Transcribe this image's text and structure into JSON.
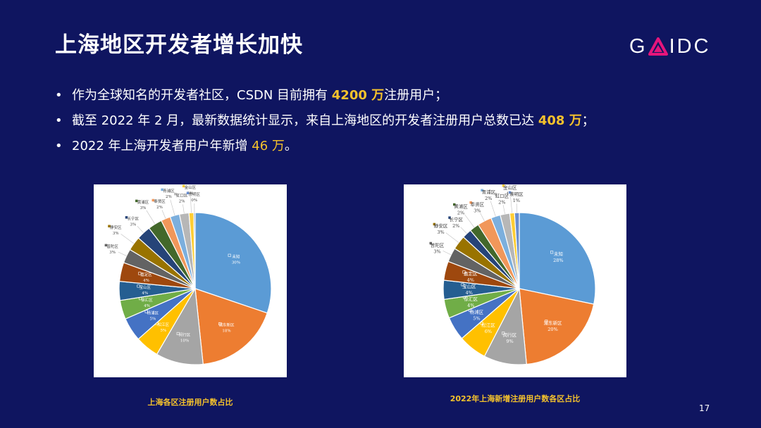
{
  "slide": {
    "title": "上海地区开发者增长加快",
    "logo": {
      "prefix": "G",
      "suffix": "IDC",
      "accent_color": "#e5157b"
    },
    "bullets": [
      {
        "pre": "作为全球知名的开发者社区，CSDN 目前拥有 ",
        "highlight": "4200 万",
        "post": "注册用户；"
      },
      {
        "pre": "截至 2022 年 2 月，最新数据统计显示，来自上海地区的开发者注册用户总数已达 ",
        "highlight": "408 万",
        "post": "；"
      },
      {
        "pre": "2022 年上海开发者用户年新增 ",
        "highlight": "46 万",
        "post": "。"
      }
    ],
    "page_number": "17",
    "colors": {
      "background": "#0f1560",
      "highlight": "#f5c22c",
      "text": "#ffffff"
    }
  },
  "chart_data": [
    {
      "type": "pie",
      "title": "上海各区注册用户数占比",
      "slices": [
        {
          "label": "未知",
          "value": 30,
          "pct": "30%",
          "color": "#5b9bd5"
        },
        {
          "label": "浦东新区",
          "value": 18,
          "pct": "18%",
          "color": "#ed7d31"
        },
        {
          "label": "闵行区",
          "value": 10,
          "pct": "10%",
          "color": "#a5a5a5"
        },
        {
          "label": "松江区",
          "value": 5,
          "pct": "5%",
          "color": "#ffc000"
        },
        {
          "label": "杨浦区",
          "value": 5,
          "pct": "5%",
          "color": "#4472c4"
        },
        {
          "label": "徐汇区",
          "value": 4,
          "pct": "4%",
          "color": "#70ad47"
        },
        {
          "label": "宝山区",
          "value": 4,
          "pct": "4%",
          "color": "#255e91"
        },
        {
          "label": "嘉定区",
          "value": 4,
          "pct": "4%",
          "color": "#9e480e"
        },
        {
          "label": "普陀区",
          "value": 3,
          "pct": "3%",
          "color": "#636363"
        },
        {
          "label": "静安区",
          "value": 3,
          "pct": "3%",
          "color": "#997300"
        },
        {
          "label": "长宁区",
          "value": 3,
          "pct": "3%",
          "color": "#264478"
        },
        {
          "label": "黄浦区",
          "value": 3,
          "pct": "3%",
          "color": "#43682b"
        },
        {
          "label": "奉贤区",
          "value": 2,
          "pct": "2%",
          "color": "#f1975a"
        },
        {
          "label": "青浦区",
          "value": 2,
          "pct": "2%",
          "color": "#7cafdd"
        },
        {
          "label": "虹口区",
          "value": 2,
          "pct": "2%",
          "color": "#b7b7b7"
        },
        {
          "label": "金山区",
          "value": 1,
          "pct": "1%",
          "color": "#ffcd33"
        },
        {
          "label": "崇明区",
          "value": 0.3,
          "pct": "0%",
          "color": "#698ed0"
        }
      ]
    },
    {
      "type": "pie",
      "title": "2022年上海新增注册用户数各区占比",
      "slices": [
        {
          "label": "未知",
          "value": 28,
          "pct": "28%",
          "color": "#5b9bd5"
        },
        {
          "label": "浦东新区",
          "value": 20,
          "pct": "20%",
          "color": "#ed7d31"
        },
        {
          "label": "闵行区",
          "value": 9,
          "pct": "9%",
          "color": "#a5a5a5"
        },
        {
          "label": "松江区",
          "value": 6,
          "pct": "6%",
          "color": "#ffc000"
        },
        {
          "label": "杨浦区",
          "value": 5,
          "pct": "5%",
          "color": "#4472c4"
        },
        {
          "label": "徐汇区",
          "value": 4,
          "pct": "4%",
          "color": "#70ad47"
        },
        {
          "label": "宝山区",
          "value": 4,
          "pct": "4%",
          "color": "#255e91"
        },
        {
          "label": "嘉定区",
          "value": 4,
          "pct": "4%",
          "color": "#9e480e"
        },
        {
          "label": "普陀区",
          "value": 3,
          "pct": "3%",
          "color": "#636363"
        },
        {
          "label": "静安区",
          "value": 3,
          "pct": "3%",
          "color": "#997300"
        },
        {
          "label": "长宁区",
          "value": 2,
          "pct": "2%",
          "color": "#264478"
        },
        {
          "label": "黄浦区",
          "value": 2,
          "pct": "2%",
          "color": "#43682b"
        },
        {
          "label": "奉贤区",
          "value": 3,
          "pct": "3%",
          "color": "#f1975a"
        },
        {
          "label": "青浦区",
          "value": 2,
          "pct": "2%",
          "color": "#7cafdd"
        },
        {
          "label": "虹口区",
          "value": 2,
          "pct": "2%",
          "color": "#b7b7b7"
        },
        {
          "label": "金山区",
          "value": 1,
          "pct": "1%",
          "color": "#ffcd33"
        },
        {
          "label": "崇明区",
          "value": 1,
          "pct": "1%",
          "color": "#698ed0"
        }
      ]
    }
  ]
}
